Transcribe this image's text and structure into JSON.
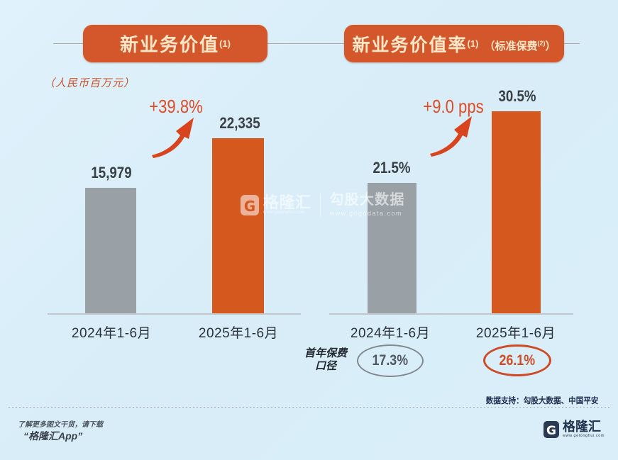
{
  "chart_data": [
    {
      "type": "bar",
      "title": "新业务价值(1)",
      "unit": "人民币百万元",
      "categories": [
        "2024年1-6月",
        "2025年1-6月"
      ],
      "values": [
        15979,
        22335
      ],
      "value_labels": [
        "15,979",
        "22,335"
      ],
      "growth_label": "+39.8%",
      "colors": [
        "#9aa1a6",
        "#d5581f"
      ],
      "legend": "none",
      "grid": "off"
    },
    {
      "type": "bar",
      "title": "新业务价值率(1)（标准保费(2)）",
      "unit": "%",
      "categories": [
        "2024年1-6月",
        "2025年1-6月"
      ],
      "values": [
        21.5,
        30.5
      ],
      "value_labels": [
        "21.5%",
        "30.5%"
      ],
      "growth_label": "+9.0 pps",
      "colors": [
        "#9aa1a6",
        "#d5581f"
      ],
      "legend": "none",
      "grid": "off",
      "secondary_row": {
        "label": "首年保费口径",
        "values": [
          "17.3%",
          "26.1%"
        ]
      }
    }
  ],
  "titles": {
    "c1_main": "新业务价值",
    "c1_sup": "(1)",
    "c2_main": "新业务价值率",
    "c2_sup": "(1)",
    "c2_note_open": "（标准保费",
    "c2_note_sup": "(2)",
    "c2_note_close": "）",
    "unit_note": "（人民币百万元）"
  },
  "premium": {
    "label_line1": "首年保费",
    "label_line2": "口径",
    "values": [
      "17.3%",
      "26.1%"
    ]
  },
  "source_note": "数据支持：勾股大数据、中国平安",
  "watermark": {
    "brand": "格隆汇",
    "brand_url": "www.gelonghui.com",
    "partner": "勾股大数据",
    "partner_url": "www.gogodata.com"
  },
  "footer": {
    "promo_line1": "了解更多图文干货，请下载",
    "promo_line2": "“格隆汇App”",
    "brand": "格隆汇",
    "brand_url": "www.gelonghui.com"
  },
  "colors": {
    "accent_orange": "#d5581f",
    "bar_gray": "#9aa1a6",
    "background": "#d9eef9",
    "navy": "#22334f"
  }
}
